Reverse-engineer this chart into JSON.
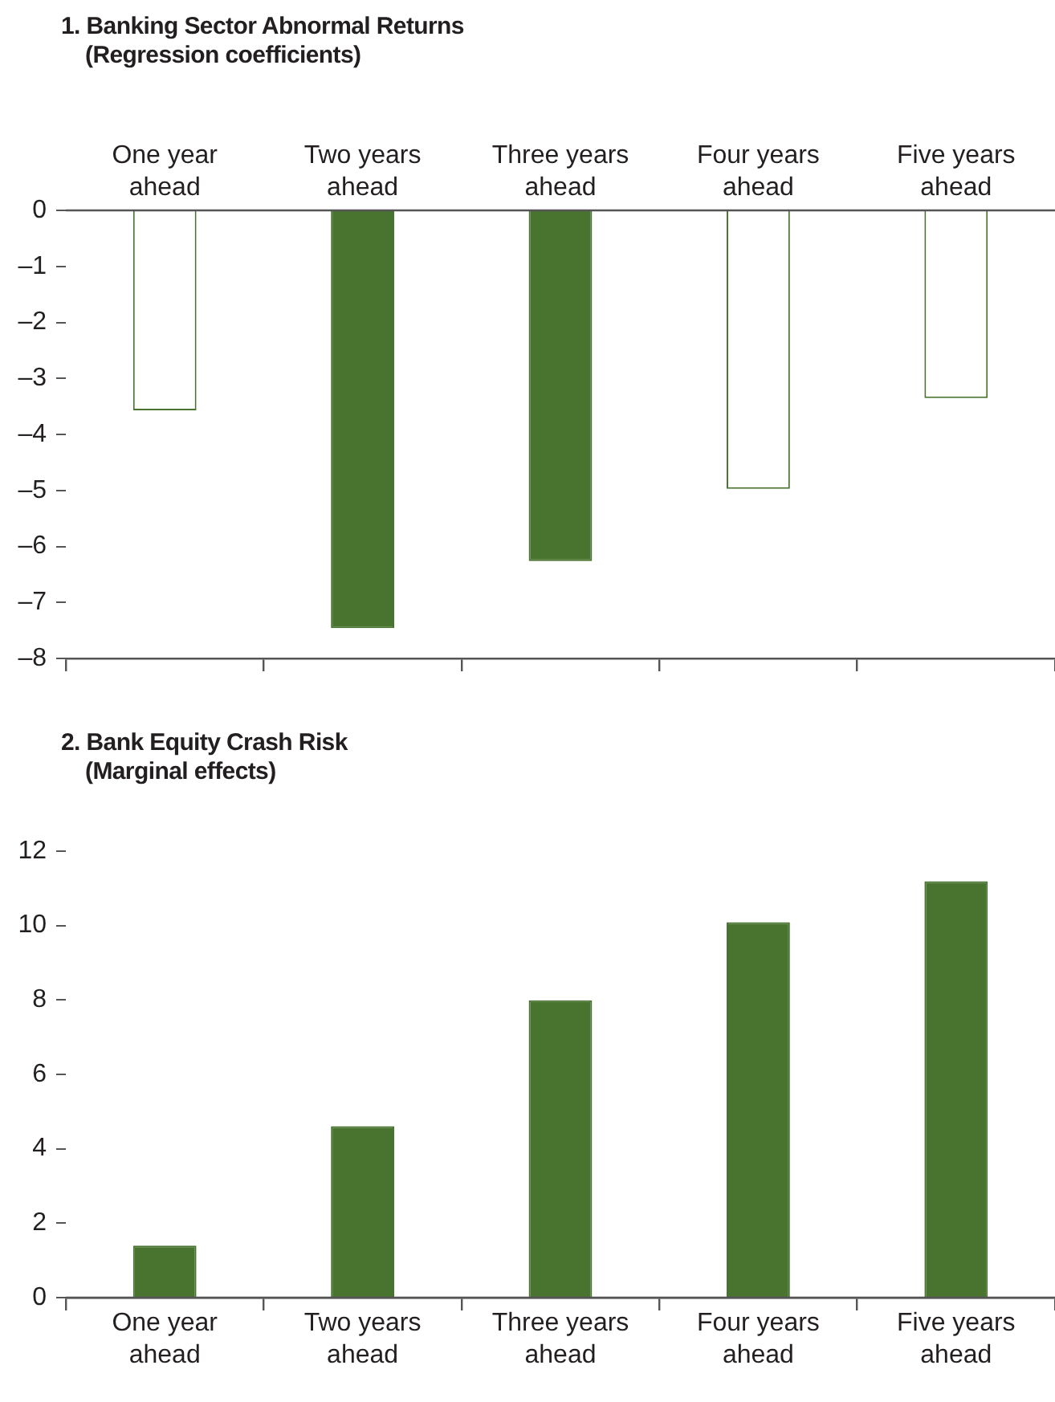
{
  "chart_data": [
    {
      "type": "bar",
      "title": "1. Banking Sector Abnormal Returns",
      "subtitle": "(Regression coefficients)",
      "categories": [
        "One year ahead",
        "Two years ahead",
        "Three years ahead",
        "Four years ahead",
        "Five years ahead"
      ],
      "values": [
        -3.57,
        -7.46,
        -6.26,
        -4.97,
        -3.35
      ],
      "color": "#48742f",
      "colors": [
        "#ffffff",
        "#48742f",
        "#48742f",
        "#ffffff",
        "#ffffff"
      ],
      "ylim": [
        -8,
        0
      ],
      "yticks": [
        0,
        {
          "value": -1,
          "label": "–1"
        },
        {
          "value": -2,
          "label": "–2"
        },
        {
          "value": -3,
          "label": "–3"
        },
        {
          "value": -4,
          "label": "–4"
        },
        {
          "value": -5,
          "label": "–5"
        },
        {
          "value": -6,
          "label": "–6"
        },
        {
          "value": -7,
          "label": "–7"
        },
        {
          "value": -8,
          "label": "–8"
        }
      ],
      "grid": false,
      "legend": false
    },
    {
      "type": "bar",
      "title": "2. Bank Equity Crash Risk",
      "subtitle": "(Marginal effects)",
      "categories": [
        "One year ahead",
        "Two years ahead",
        "Three years ahead",
        "Four years ahead",
        "Five years ahead"
      ],
      "values": [
        1.4,
        4.61,
        7.99,
        10.09,
        11.19
      ],
      "color": "#48742f",
      "colors": [
        "#48742f",
        "#48742f",
        "#48742f",
        "#48742f",
        "#48742f"
      ],
      "ylim": [
        0,
        12
      ],
      "yticks": [
        0,
        2,
        4,
        6,
        8,
        10,
        12
      ],
      "grid": false,
      "legend": false
    }
  ]
}
